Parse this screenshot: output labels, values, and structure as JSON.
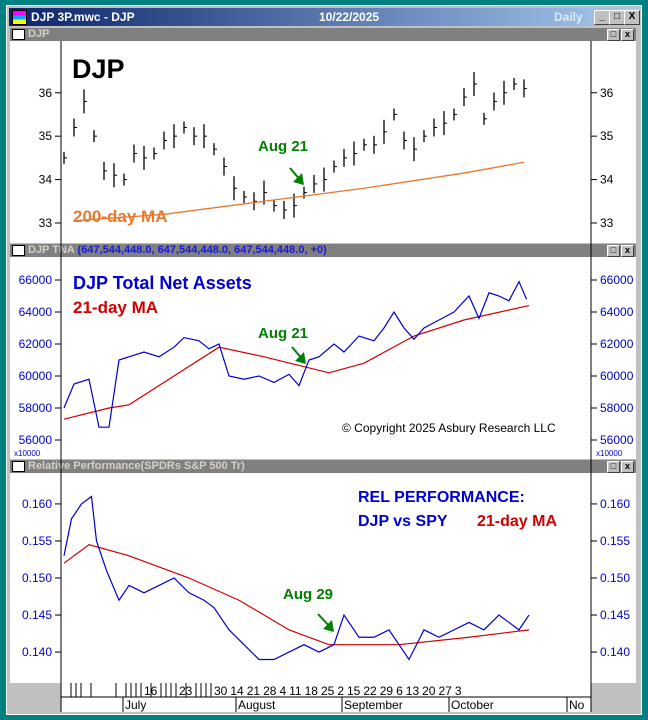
{
  "window": {
    "title": "DJP 3P.mwc - DJP",
    "date": "10/22/2025",
    "period": "Daily",
    "min": "_",
    "max": "□",
    "close": "X"
  },
  "panels": [
    {
      "title": "DJP",
      "extra": "",
      "label1": "DJP",
      "label2": "200-day MA",
      "annotation": "Aug 21",
      "yticks": [
        "36",
        "35",
        "34",
        "33"
      ]
    },
    {
      "title": "DJP TNA",
      "extra": "(647,544,448.0, 647,544,448.0, 647,544,448.0, +0)",
      "label1": "DJP Total Net Assets",
      "label2": "21-day MA",
      "annotation": "Aug 21",
      "copyright": "© Copyright 2025 Asbury Research LLC",
      "scale": "x10000",
      "yticks": [
        "66000",
        "64000",
        "62000",
        "60000",
        "58000",
        "56000"
      ]
    },
    {
      "title": "Relative Performance(SPDRs S&P 500 Tr)",
      "extra": "",
      "label1": "REL PERFORMANCE:",
      "label2a": "DJP vs SPY",
      "label2b": "21-day MA",
      "annotation": "Aug 29",
      "yticks": [
        "0.160",
        "0.155",
        "0.150",
        "0.145",
        "0.140"
      ]
    }
  ],
  "colors": {
    "price": "#000000",
    "ma200": "#e87830",
    "tna": "#0000d0",
    "ma21": "#d00000",
    "annot": "#008000"
  },
  "chart_data": {
    "type": "line",
    "x_unit": "trading day index from Jun 13 2025",
    "price": {
      "ylim": [
        32.7,
        37.1
      ],
      "values": [
        [
          0,
          34.5
        ],
        [
          2,
          35.2
        ],
        [
          4,
          35.8
        ],
        [
          6,
          35.0
        ],
        [
          8,
          34.2
        ],
        [
          10,
          34.1
        ],
        [
          12,
          34.0
        ],
        [
          14,
          34.6
        ],
        [
          16,
          34.5
        ],
        [
          18,
          34.6
        ],
        [
          20,
          34.9
        ],
        [
          22,
          35.0
        ],
        [
          24,
          35.2
        ],
        [
          26,
          35.0
        ],
        [
          28,
          35.0
        ],
        [
          30,
          34.7
        ],
        [
          32,
          34.3
        ],
        [
          34,
          33.8
        ],
        [
          36,
          33.6
        ],
        [
          38,
          33.5
        ],
        [
          40,
          33.7
        ],
        [
          42,
          33.4
        ],
        [
          44,
          33.3
        ],
        [
          46,
          33.4
        ],
        [
          48,
          33.7
        ],
        [
          50,
          33.9
        ],
        [
          52,
          34.0
        ],
        [
          54,
          34.3
        ],
        [
          56,
          34.5
        ],
        [
          58,
          34.6
        ],
        [
          60,
          34.8
        ],
        [
          62,
          34.8
        ],
        [
          64,
          35.1
        ],
        [
          66,
          35.5
        ],
        [
          68,
          34.9
        ],
        [
          70,
          34.7
        ],
        [
          72,
          35.0
        ],
        [
          74,
          35.2
        ],
        [
          76,
          35.3
        ],
        [
          78,
          35.5
        ],
        [
          80,
          35.9
        ],
        [
          82,
          36.2
        ],
        [
          84,
          35.4
        ],
        [
          86,
          35.8
        ],
        [
          88,
          36.0
        ],
        [
          90,
          36.2
        ],
        [
          92,
          36.1
        ]
      ],
      "ma200": [
        [
          2,
          33.05
        ],
        [
          20,
          33.2
        ],
        [
          40,
          33.5
        ],
        [
          60,
          33.8
        ],
        [
          80,
          34.15
        ],
        [
          92,
          34.4
        ]
      ]
    },
    "tna": {
      "ylim": [
        56000,
        67000
      ],
      "values": [
        [
          0,
          58000
        ],
        [
          2,
          59500
        ],
        [
          5,
          59800
        ],
        [
          7,
          56800
        ],
        [
          9,
          56800
        ],
        [
          11,
          61000
        ],
        [
          13,
          61200
        ],
        [
          16,
          61500
        ],
        [
          19,
          61200
        ],
        [
          22,
          61800
        ],
        [
          24,
          62400
        ],
        [
          27,
          62200
        ],
        [
          29,
          61700
        ],
        [
          31,
          62000
        ],
        [
          33,
          60000
        ],
        [
          36,
          59800
        ],
        [
          39,
          60000
        ],
        [
          42,
          59600
        ],
        [
          45,
          60100
        ],
        [
          47,
          59400
        ],
        [
          49,
          61000
        ],
        [
          51,
          61200
        ],
        [
          54,
          62000
        ],
        [
          56,
          61500
        ],
        [
          59,
          62500
        ],
        [
          62,
          62200
        ],
        [
          64,
          63000
        ],
        [
          66,
          64000
        ],
        [
          68,
          63000
        ],
        [
          70,
          62300
        ],
        [
          72,
          63000
        ],
        [
          75,
          63500
        ],
        [
          78,
          64000
        ],
        [
          81,
          65000
        ],
        [
          83,
          63600
        ],
        [
          85,
          65200
        ],
        [
          87,
          65000
        ],
        [
          89,
          64700
        ],
        [
          91,
          65900
        ],
        [
          92.5,
          64800
        ]
      ],
      "ma21": [
        [
          0,
          57300
        ],
        [
          9,
          58000
        ],
        [
          13,
          58200
        ],
        [
          22,
          60000
        ],
        [
          31,
          61800
        ],
        [
          40,
          61200
        ],
        [
          53,
          60200
        ],
        [
          60,
          60800
        ],
        [
          70,
          62500
        ],
        [
          80,
          63500
        ],
        [
          93,
          64400
        ]
      ]
    },
    "rel": {
      "ylim": [
        0.1365,
        0.1635
      ],
      "values": [
        [
          0,
          0.153
        ],
        [
          1.5,
          0.158
        ],
        [
          3.5,
          0.16
        ],
        [
          5.5,
          0.161
        ],
        [
          6.5,
          0.155
        ],
        [
          8.5,
          0.151
        ],
        [
          11,
          0.147
        ],
        [
          13,
          0.149
        ],
        [
          16,
          0.148
        ],
        [
          19,
          0.149
        ],
        [
          22,
          0.15
        ],
        [
          25,
          0.148
        ],
        [
          28,
          0.147
        ],
        [
          30,
          0.146
        ],
        [
          33,
          0.143
        ],
        [
          36,
          0.141
        ],
        [
          39,
          0.139
        ],
        [
          42,
          0.139
        ],
        [
          45,
          0.14
        ],
        [
          48,
          0.141
        ],
        [
          51,
          0.14
        ],
        [
          54,
          0.141
        ],
        [
          56,
          0.145
        ],
        [
          59,
          0.142
        ],
        [
          62,
          0.142
        ],
        [
          65,
          0.143
        ],
        [
          69,
          0.139
        ],
        [
          72,
          0.143
        ],
        [
          75,
          0.142
        ],
        [
          78,
          0.143
        ],
        [
          81,
          0.144
        ],
        [
          84,
          0.143
        ],
        [
          87,
          0.145
        ],
        [
          89,
          0.144
        ],
        [
          91,
          0.143
        ],
        [
          93,
          0.145
        ]
      ],
      "ma21": [
        [
          0,
          0.152
        ],
        [
          5,
          0.1545
        ],
        [
          13,
          0.153
        ],
        [
          25,
          0.15
        ],
        [
          35,
          0.147
        ],
        [
          45,
          0.143
        ],
        [
          53,
          0.141
        ],
        [
          67,
          0.141
        ],
        [
          81,
          0.142
        ],
        [
          93,
          0.143
        ]
      ]
    },
    "xticks": [
      [
        "16",
        2.4
      ],
      [
        "23",
        6.4
      ],
      [
        "30",
        11.6
      ],
      [
        "14",
        20.6
      ],
      [
        "21",
        25.6
      ],
      [
        "28",
        31
      ],
      [
        "4",
        36
      ],
      [
        "11",
        41.2
      ],
      [
        "18",
        46.2
      ],
      [
        "25",
        51.2
      ],
      [
        "2",
        56.4
      ],
      [
        "15",
        65.8
      ],
      [
        "22",
        70.8
      ],
      [
        "29",
        76
      ],
      [
        "6",
        78.6
      ],
      [
        "13",
        85.4
      ],
      [
        "20",
        90.6
      ],
      [
        "27",
        95.8
      ],
      [
        "3",
        101
      ]
    ],
    "months": [
      [
        "July",
        12.4
      ],
      [
        "August",
        35
      ],
      [
        "September",
        56.2
      ],
      [
        "October",
        77.6
      ],
      [
        "No",
        101.2
      ]
    ]
  }
}
